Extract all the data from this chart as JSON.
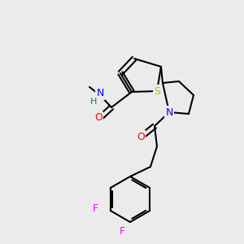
{
  "bg_color": "#ebebeb",
  "bond_color": "#000000",
  "bond_width": 1.5,
  "atom_colors": {
    "N": "#0000ff",
    "O": "#ff0000",
    "S": "#b8b800",
    "F": "#ff00ff",
    "H": "#008080",
    "C": "#000000"
  },
  "font_size": 9,
  "label_font_size": 9
}
